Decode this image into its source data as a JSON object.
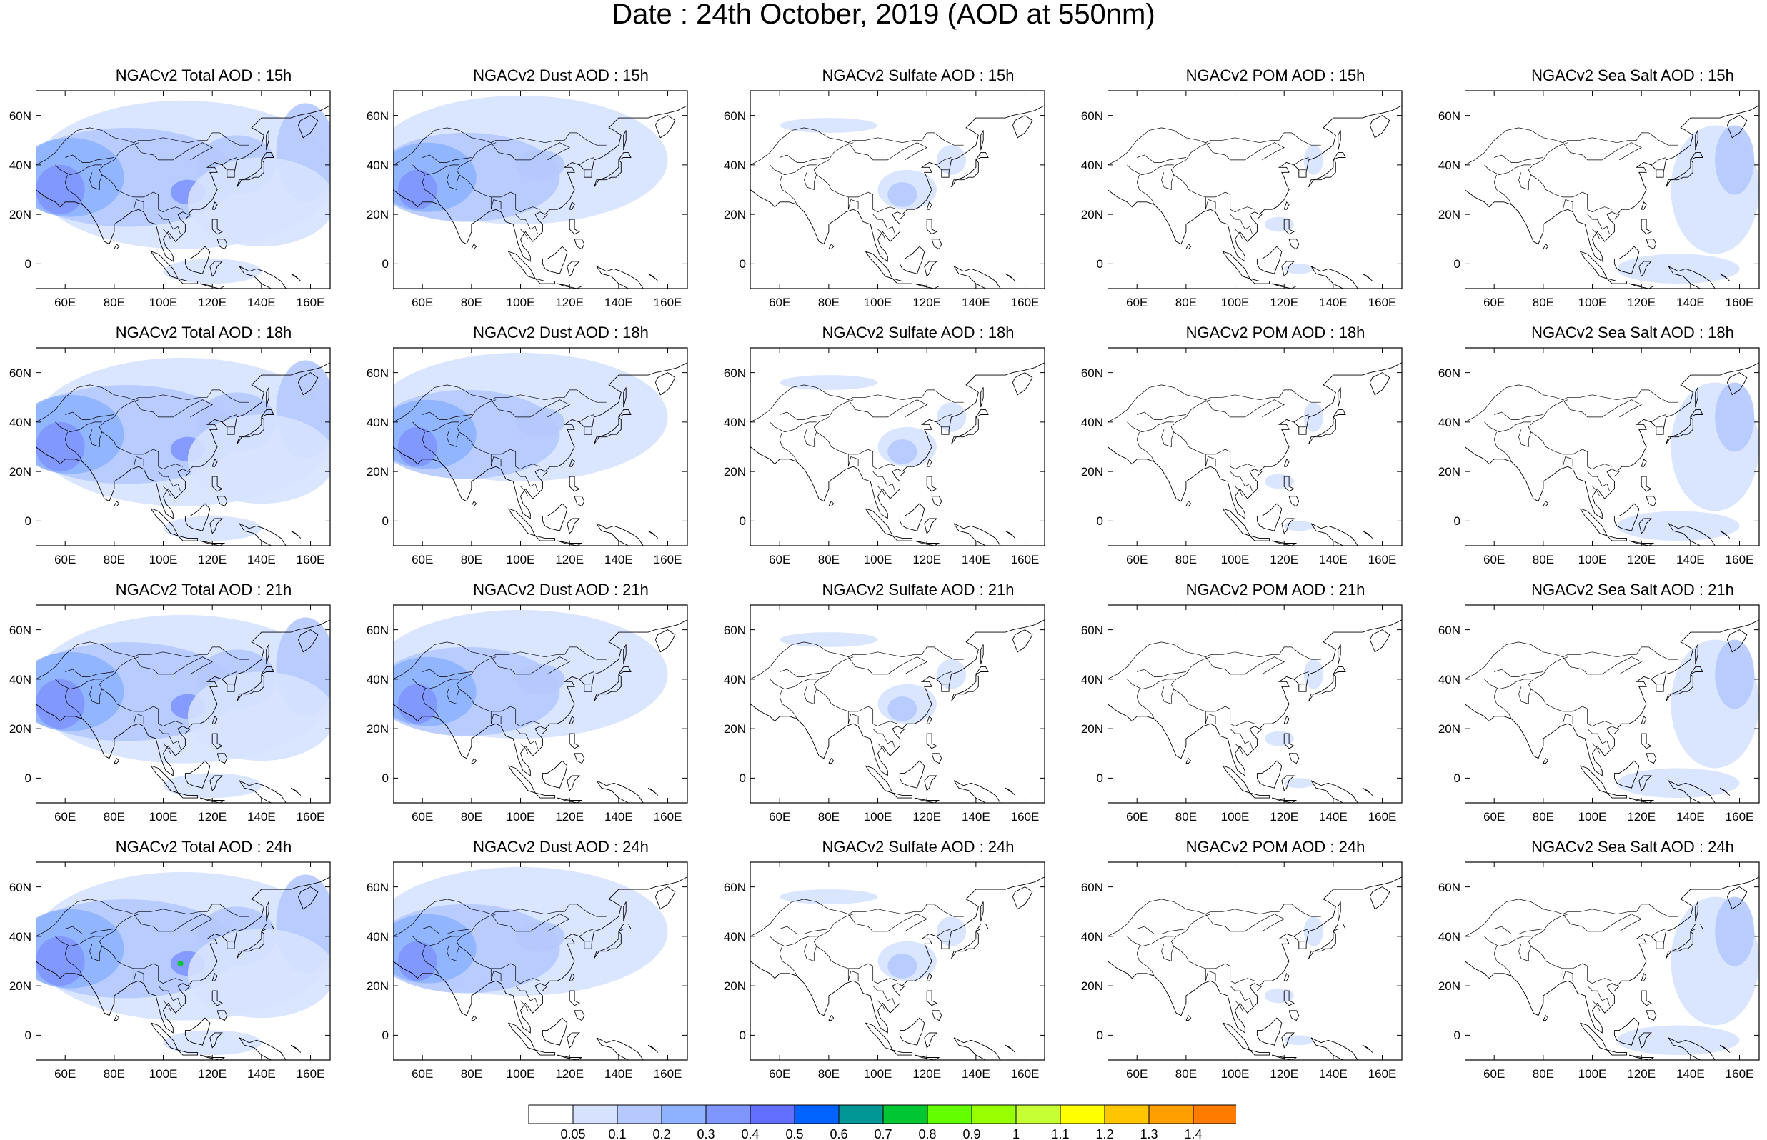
{
  "title": "Date : 24th October, 2019 (AOD at 550nm)",
  "axes": {
    "lon_ticks": [
      "60E",
      "80E",
      "100E",
      "120E",
      "140E",
      "160E"
    ],
    "lon_values": [
      60,
      80,
      100,
      120,
      140,
      160
    ],
    "lat_ticks": [
      "60N",
      "40N",
      "20N",
      "0"
    ],
    "lat_values": [
      60,
      40,
      20,
      0
    ],
    "lon_range": [
      48,
      168
    ],
    "lat_range": [
      -10,
      70
    ]
  },
  "colors": {
    "coastline": "#000000",
    "levels": [
      "#ffffff",
      "#d6e2ff",
      "#b5c9ff",
      "#8eb2ff",
      "#7f96ff",
      "#6370ff",
      "#0063ff",
      "#009696",
      "#00c633",
      "#63ff00",
      "#96ff00",
      "#c6ff33",
      "#ffff00",
      "#ffc600",
      "#ffa000",
      "#ff7c00",
      "#ff1900"
    ]
  },
  "colorbar": {
    "labels": [
      "0.05",
      "0.1",
      "0.2",
      "0.3",
      "0.4",
      "0.5",
      "0.6",
      "0.7",
      "0.8",
      "0.9",
      "1",
      "1.1",
      "1.2",
      "1.3",
      "1.4"
    ],
    "colors": [
      "#ffffff",
      "#d6e2ff",
      "#b5c9ff",
      "#8eb2ff",
      "#7f96ff",
      "#6370ff",
      "#0063ff",
      "#009696",
      "#00c633",
      "#63ff00",
      "#96ff00",
      "#c6ff33",
      "#ffff00",
      "#ffc600",
      "#ffa000",
      "#ff7c00"
    ]
  },
  "rows": [
    [
      "NGACv2 Total AOD : 15h",
      "NGACv2 Dust AOD : 15h",
      "NGACv2 Sulfate AOD : 15h",
      "NGACv2 POM AOD : 15h",
      "NGACv2 Sea Salt AOD : 15h"
    ],
    [
      "NGACv2 Total AOD : 18h",
      "NGACv2 Dust AOD : 18h",
      "NGACv2 Sulfate AOD : 18h",
      "NGACv2 POM AOD : 18h",
      "NGACv2 Sea Salt AOD : 18h"
    ],
    [
      "NGACv2 Total AOD : 21h",
      "NGACv2 Dust AOD : 21h",
      "NGACv2 Sulfate AOD : 21h",
      "NGACv2 POM AOD : 21h",
      "NGACv2 Sea Salt AOD : 21h"
    ],
    [
      "NGACv2 Total AOD : 24h",
      "NGACv2 Dust AOD : 24h",
      "NGACv2 Sulfate AOD : 24h",
      "NGACv2 POM AOD : 24h",
      "NGACv2 Sea Salt  AOD : 24h"
    ]
  ]
}
